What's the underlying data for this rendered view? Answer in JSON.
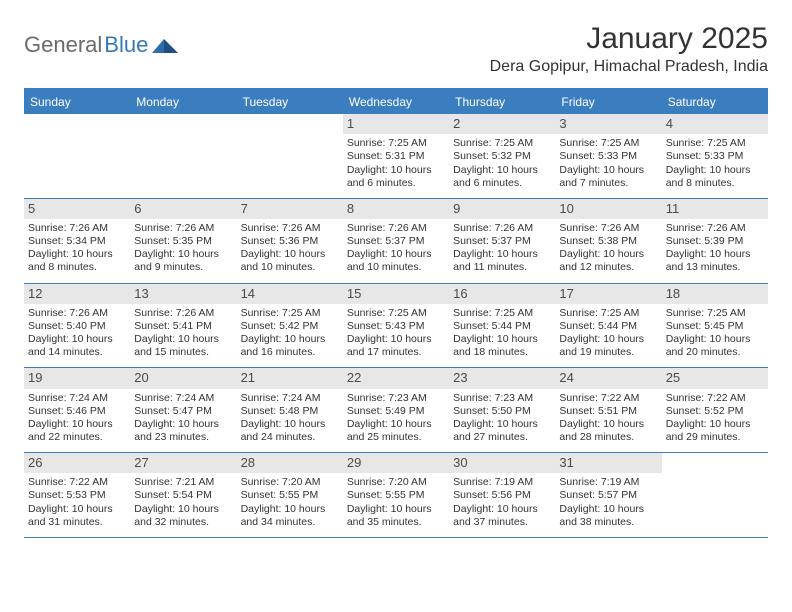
{
  "logo": {
    "textA": "General",
    "textB": "Blue"
  },
  "title": "January 2025",
  "location": "Dera Gopipur, Himachal Pradesh, India",
  "colors": {
    "header_bar": "#3b7ec0",
    "daynum_bg": "#e7e7e7",
    "text": "#333333",
    "logo_gray": "#6b6b6b",
    "logo_blue": "#357ab8",
    "background": "#ffffff"
  },
  "weekdays": [
    "Sunday",
    "Monday",
    "Tuesday",
    "Wednesday",
    "Thursday",
    "Friday",
    "Saturday"
  ],
  "weeks": [
    [
      null,
      null,
      null,
      {
        "n": "1",
        "sr": "Sunrise: 7:25 AM",
        "ss": "Sunset: 5:31 PM",
        "d1": "Daylight: 10 hours",
        "d2": "and 6 minutes."
      },
      {
        "n": "2",
        "sr": "Sunrise: 7:25 AM",
        "ss": "Sunset: 5:32 PM",
        "d1": "Daylight: 10 hours",
        "d2": "and 6 minutes."
      },
      {
        "n": "3",
        "sr": "Sunrise: 7:25 AM",
        "ss": "Sunset: 5:33 PM",
        "d1": "Daylight: 10 hours",
        "d2": "and 7 minutes."
      },
      {
        "n": "4",
        "sr": "Sunrise: 7:25 AM",
        "ss": "Sunset: 5:33 PM",
        "d1": "Daylight: 10 hours",
        "d2": "and 8 minutes."
      }
    ],
    [
      {
        "n": "5",
        "sr": "Sunrise: 7:26 AM",
        "ss": "Sunset: 5:34 PM",
        "d1": "Daylight: 10 hours",
        "d2": "and 8 minutes."
      },
      {
        "n": "6",
        "sr": "Sunrise: 7:26 AM",
        "ss": "Sunset: 5:35 PM",
        "d1": "Daylight: 10 hours",
        "d2": "and 9 minutes."
      },
      {
        "n": "7",
        "sr": "Sunrise: 7:26 AM",
        "ss": "Sunset: 5:36 PM",
        "d1": "Daylight: 10 hours",
        "d2": "and 10 minutes."
      },
      {
        "n": "8",
        "sr": "Sunrise: 7:26 AM",
        "ss": "Sunset: 5:37 PM",
        "d1": "Daylight: 10 hours",
        "d2": "and 10 minutes."
      },
      {
        "n": "9",
        "sr": "Sunrise: 7:26 AM",
        "ss": "Sunset: 5:37 PM",
        "d1": "Daylight: 10 hours",
        "d2": "and 11 minutes."
      },
      {
        "n": "10",
        "sr": "Sunrise: 7:26 AM",
        "ss": "Sunset: 5:38 PM",
        "d1": "Daylight: 10 hours",
        "d2": "and 12 minutes."
      },
      {
        "n": "11",
        "sr": "Sunrise: 7:26 AM",
        "ss": "Sunset: 5:39 PM",
        "d1": "Daylight: 10 hours",
        "d2": "and 13 minutes."
      }
    ],
    [
      {
        "n": "12",
        "sr": "Sunrise: 7:26 AM",
        "ss": "Sunset: 5:40 PM",
        "d1": "Daylight: 10 hours",
        "d2": "and 14 minutes."
      },
      {
        "n": "13",
        "sr": "Sunrise: 7:26 AM",
        "ss": "Sunset: 5:41 PM",
        "d1": "Daylight: 10 hours",
        "d2": "and 15 minutes."
      },
      {
        "n": "14",
        "sr": "Sunrise: 7:25 AM",
        "ss": "Sunset: 5:42 PM",
        "d1": "Daylight: 10 hours",
        "d2": "and 16 minutes."
      },
      {
        "n": "15",
        "sr": "Sunrise: 7:25 AM",
        "ss": "Sunset: 5:43 PM",
        "d1": "Daylight: 10 hours",
        "d2": "and 17 minutes."
      },
      {
        "n": "16",
        "sr": "Sunrise: 7:25 AM",
        "ss": "Sunset: 5:44 PM",
        "d1": "Daylight: 10 hours",
        "d2": "and 18 minutes."
      },
      {
        "n": "17",
        "sr": "Sunrise: 7:25 AM",
        "ss": "Sunset: 5:44 PM",
        "d1": "Daylight: 10 hours",
        "d2": "and 19 minutes."
      },
      {
        "n": "18",
        "sr": "Sunrise: 7:25 AM",
        "ss": "Sunset: 5:45 PM",
        "d1": "Daylight: 10 hours",
        "d2": "and 20 minutes."
      }
    ],
    [
      {
        "n": "19",
        "sr": "Sunrise: 7:24 AM",
        "ss": "Sunset: 5:46 PM",
        "d1": "Daylight: 10 hours",
        "d2": "and 22 minutes."
      },
      {
        "n": "20",
        "sr": "Sunrise: 7:24 AM",
        "ss": "Sunset: 5:47 PM",
        "d1": "Daylight: 10 hours",
        "d2": "and 23 minutes."
      },
      {
        "n": "21",
        "sr": "Sunrise: 7:24 AM",
        "ss": "Sunset: 5:48 PM",
        "d1": "Daylight: 10 hours",
        "d2": "and 24 minutes."
      },
      {
        "n": "22",
        "sr": "Sunrise: 7:23 AM",
        "ss": "Sunset: 5:49 PM",
        "d1": "Daylight: 10 hours",
        "d2": "and 25 minutes."
      },
      {
        "n": "23",
        "sr": "Sunrise: 7:23 AM",
        "ss": "Sunset: 5:50 PM",
        "d1": "Daylight: 10 hours",
        "d2": "and 27 minutes."
      },
      {
        "n": "24",
        "sr": "Sunrise: 7:22 AM",
        "ss": "Sunset: 5:51 PM",
        "d1": "Daylight: 10 hours",
        "d2": "and 28 minutes."
      },
      {
        "n": "25",
        "sr": "Sunrise: 7:22 AM",
        "ss": "Sunset: 5:52 PM",
        "d1": "Daylight: 10 hours",
        "d2": "and 29 minutes."
      }
    ],
    [
      {
        "n": "26",
        "sr": "Sunrise: 7:22 AM",
        "ss": "Sunset: 5:53 PM",
        "d1": "Daylight: 10 hours",
        "d2": "and 31 minutes."
      },
      {
        "n": "27",
        "sr": "Sunrise: 7:21 AM",
        "ss": "Sunset: 5:54 PM",
        "d1": "Daylight: 10 hours",
        "d2": "and 32 minutes."
      },
      {
        "n": "28",
        "sr": "Sunrise: 7:20 AM",
        "ss": "Sunset: 5:55 PM",
        "d1": "Daylight: 10 hours",
        "d2": "and 34 minutes."
      },
      {
        "n": "29",
        "sr": "Sunrise: 7:20 AM",
        "ss": "Sunset: 5:55 PM",
        "d1": "Daylight: 10 hours",
        "d2": "and 35 minutes."
      },
      {
        "n": "30",
        "sr": "Sunrise: 7:19 AM",
        "ss": "Sunset: 5:56 PM",
        "d1": "Daylight: 10 hours",
        "d2": "and 37 minutes."
      },
      {
        "n": "31",
        "sr": "Sunrise: 7:19 AM",
        "ss": "Sunset: 5:57 PM",
        "d1": "Daylight: 10 hours",
        "d2": "and 38 minutes."
      },
      null
    ]
  ]
}
